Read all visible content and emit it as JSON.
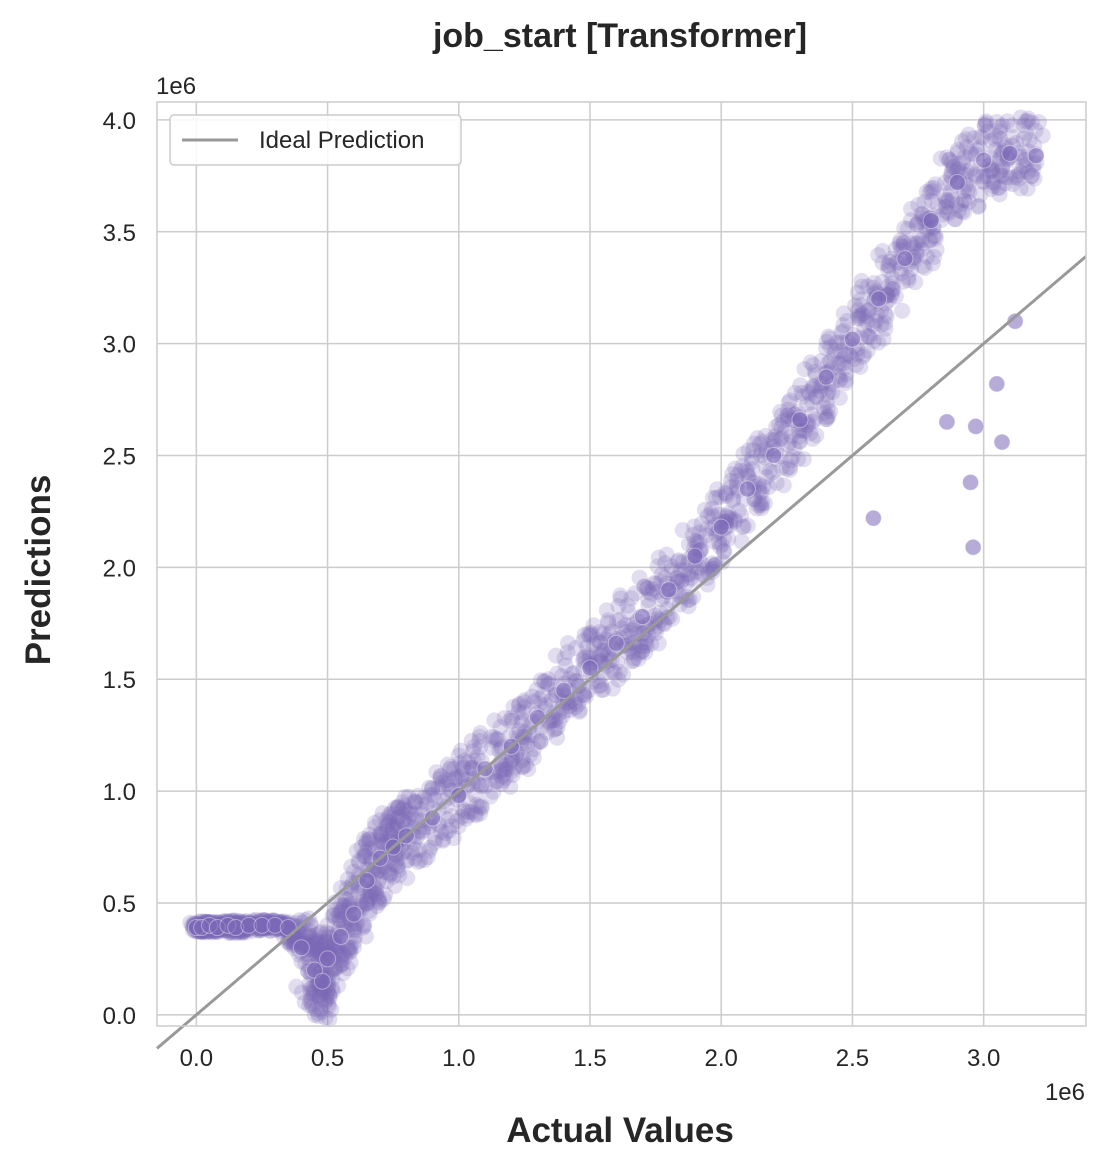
{
  "chart_data": {
    "type": "scatter",
    "title": "job_start [Transformer]",
    "xlabel": "Actual Values",
    "ylabel": "Predictions",
    "x_offset_text": "1e6",
    "y_offset_text": "1e6",
    "xlim": [
      -0.15,
      3.39
    ],
    "ylim": [
      -0.05,
      4.08
    ],
    "xticks": [
      0.0,
      0.5,
      1.0,
      1.5,
      2.0,
      2.5,
      3.0
    ],
    "xtick_labels": [
      "0.0",
      "0.5",
      "1.0",
      "1.5",
      "2.0",
      "2.5",
      "3.0"
    ],
    "yticks": [
      0.0,
      0.5,
      1.0,
      1.5,
      2.0,
      2.5,
      3.0,
      3.5,
      4.0
    ],
    "ytick_labels": [
      "0.0",
      "0.5",
      "1.0",
      "1.5",
      "2.0",
      "2.5",
      "3.0",
      "3.5",
      "4.0"
    ],
    "grid": true,
    "legend_position": "top-left",
    "legend": [
      {
        "label": "Ideal Prediction",
        "color": "#999999"
      }
    ],
    "ideal_line": {
      "x": [
        -0.15,
        3.39
      ],
      "y": [
        -0.15,
        3.39
      ],
      "color": "#999999"
    },
    "point_color": "#7b68b8",
    "series": [
      {
        "points": [
          [
            0.0,
            0.39
          ],
          [
            0.02,
            0.39
          ],
          [
            0.05,
            0.4
          ],
          [
            0.08,
            0.39
          ],
          [
            0.12,
            0.4
          ],
          [
            0.15,
            0.39
          ],
          [
            0.2,
            0.4
          ],
          [
            0.25,
            0.4
          ],
          [
            0.3,
            0.4
          ],
          [
            0.35,
            0.39
          ],
          [
            0.4,
            0.3
          ],
          [
            0.45,
            0.2
          ],
          [
            0.48,
            0.15
          ],
          [
            0.5,
            0.25
          ],
          [
            0.55,
            0.35
          ],
          [
            0.6,
            0.45
          ],
          [
            0.65,
            0.6
          ],
          [
            0.7,
            0.7
          ],
          [
            0.75,
            0.75
          ],
          [
            0.8,
            0.8
          ],
          [
            0.9,
            0.88
          ],
          [
            1.0,
            0.98
          ],
          [
            1.1,
            1.1
          ],
          [
            1.2,
            1.2
          ],
          [
            1.3,
            1.33
          ],
          [
            1.4,
            1.45
          ],
          [
            1.5,
            1.55
          ],
          [
            1.6,
            1.66
          ],
          [
            1.7,
            1.78
          ],
          [
            1.8,
            1.9
          ],
          [
            1.9,
            2.05
          ],
          [
            2.0,
            2.18
          ],
          [
            2.1,
            2.35
          ],
          [
            2.2,
            2.5
          ],
          [
            2.3,
            2.66
          ],
          [
            2.4,
            2.85
          ],
          [
            2.5,
            3.02
          ],
          [
            2.6,
            3.2
          ],
          [
            2.7,
            3.38
          ],
          [
            2.8,
            3.55
          ],
          [
            2.9,
            3.72
          ],
          [
            3.0,
            3.82
          ],
          [
            3.1,
            3.85
          ],
          [
            3.2,
            3.84
          ],
          [
            2.58,
            2.22
          ],
          [
            2.95,
            2.38
          ],
          [
            2.96,
            2.09
          ],
          [
            3.07,
            2.56
          ],
          [
            2.97,
            2.63
          ],
          [
            2.86,
            2.65
          ],
          [
            3.05,
            2.82
          ],
          [
            3.12,
            3.1
          ]
        ]
      }
    ]
  }
}
